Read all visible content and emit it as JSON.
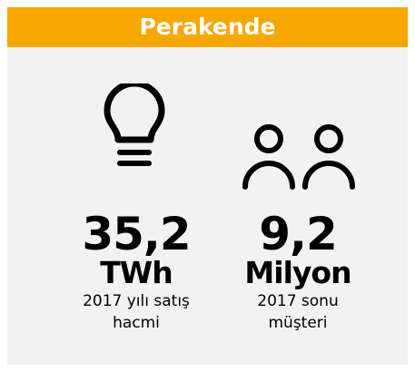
{
  "header": {
    "title": "Perakende"
  },
  "stats": [
    {
      "value": "35,2",
      "unit": "TWh",
      "description": [
        "2017 yılı satış",
        "hacmi"
      ]
    },
    {
      "value": "9,2",
      "unit": "Milyon",
      "description": [
        "2017 sonu",
        "müşteri"
      ]
    }
  ]
}
